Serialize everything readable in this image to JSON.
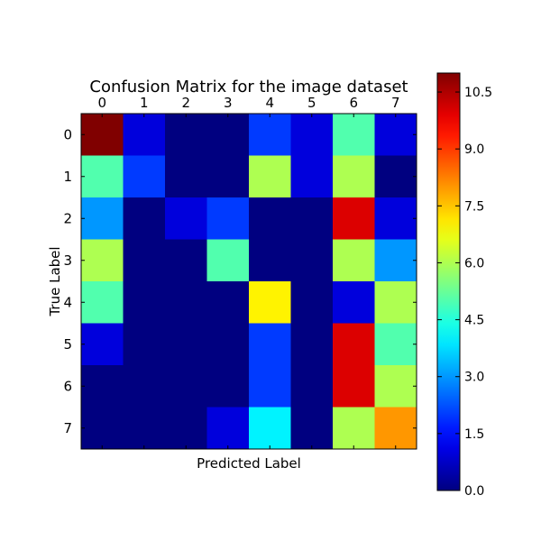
{
  "chart_data": {
    "type": "heatmap",
    "title": "Confusion Matrix for the image dataset",
    "xlabel": "Predicted Label",
    "ylabel": "True Label",
    "x_ticks": [
      "0",
      "1",
      "2",
      "3",
      "4",
      "5",
      "6",
      "7"
    ],
    "y_ticks": [
      "0",
      "1",
      "2",
      "3",
      "4",
      "5",
      "6",
      "7"
    ],
    "x_tick_position": "top",
    "values": [
      [
        11,
        1,
        0,
        0,
        2,
        1,
        5,
        1
      ],
      [
        5,
        2,
        0,
        0,
        6,
        1,
        6,
        0
      ],
      [
        3,
        0,
        1,
        2,
        0,
        0,
        10,
        1
      ],
      [
        6,
        0,
        0,
        5,
        0,
        0,
        6,
        3
      ],
      [
        5,
        0,
        0,
        0,
        7,
        0,
        1,
        6
      ],
      [
        1,
        0,
        0,
        0,
        2,
        0,
        10,
        5
      ],
      [
        0,
        0,
        0,
        0,
        2,
        0,
        10,
        6
      ],
      [
        0,
        0,
        0,
        1,
        4,
        0,
        6,
        8
      ]
    ],
    "colormap": "jet",
    "colorbar": {
      "min": 0,
      "max": 11,
      "ticks": [
        "0.0",
        "1.5",
        "3.0",
        "4.5",
        "6.0",
        "7.5",
        "9.0",
        "10.5"
      ],
      "position": "right"
    },
    "grid": false
  }
}
